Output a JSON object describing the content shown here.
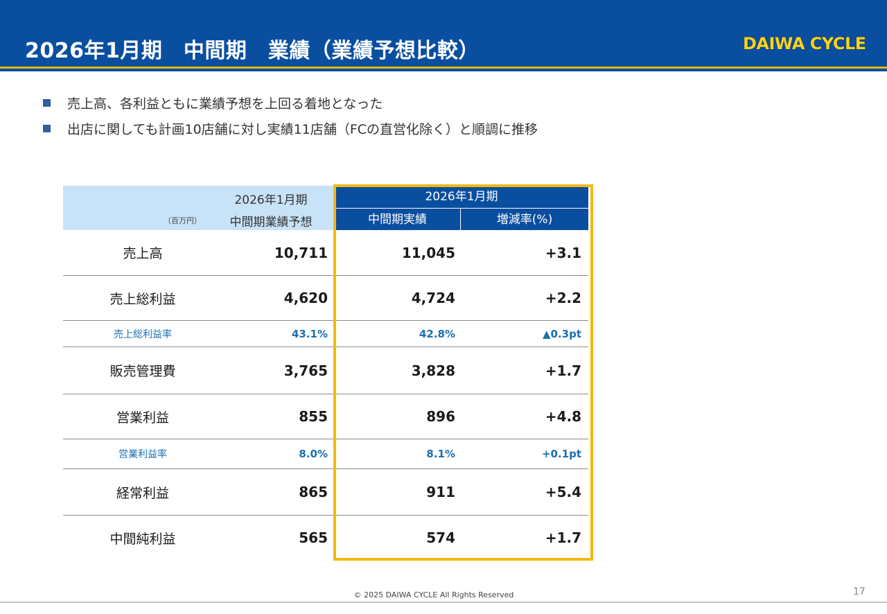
{
  "header": {
    "title": "2026年1月期　中間期　業績（業績予想比較）",
    "logo_text": "DAIWA CYCLE"
  },
  "bullets": [
    "売上高、各利益ともに業績予想を上回る着地となった",
    "出店に関しても計画10店舗に対し実績11店舗（FCの直営化除く）と順調に推移"
  ],
  "table": {
    "unit": "（百万円）",
    "forecast_period": "2026年1月期",
    "forecast_label": "中間期業績予想",
    "actual_period": "2026年1月期",
    "actual_label": "中間期実績",
    "change_label": "増減率(%)",
    "rows": [
      {
        "label": "売上高",
        "forecast": "10,711",
        "actual": "11,045",
        "change": "+3.1"
      },
      {
        "label": "売上総利益",
        "forecast": "4,620",
        "actual": "4,724",
        "change": "+2.2"
      },
      {
        "label": "売上総利益率",
        "forecast": "43.1%",
        "actual": "42.8%",
        "change": "▲0.3pt"
      },
      {
        "label": "販売管理費",
        "forecast": "3,765",
        "actual": "3,828",
        "change": "+1.7"
      },
      {
        "label": "営業利益",
        "forecast": "855",
        "actual": "896",
        "change": "+4.8"
      },
      {
        "label": "営業利益率",
        "forecast": "8.0%",
        "actual": "8.1%",
        "change": "+0.1pt"
      },
      {
        "label": "経常利益",
        "forecast": "865",
        "actual": "911",
        "change": "+5.4"
      },
      {
        "label": "中間純利益",
        "forecast": "565",
        "actual": "574",
        "change": "+1.7"
      }
    ]
  },
  "footer": {
    "copyright": "© 2025 DAIWA CYCLE All Rights Reserved",
    "page_number": "17"
  },
  "colors": {
    "header_blue": "#0a4ea0",
    "accent_yellow": "#f2b90f",
    "light_blue": "#c8e3f7",
    "ratio_blue": "#1a6fb0"
  }
}
